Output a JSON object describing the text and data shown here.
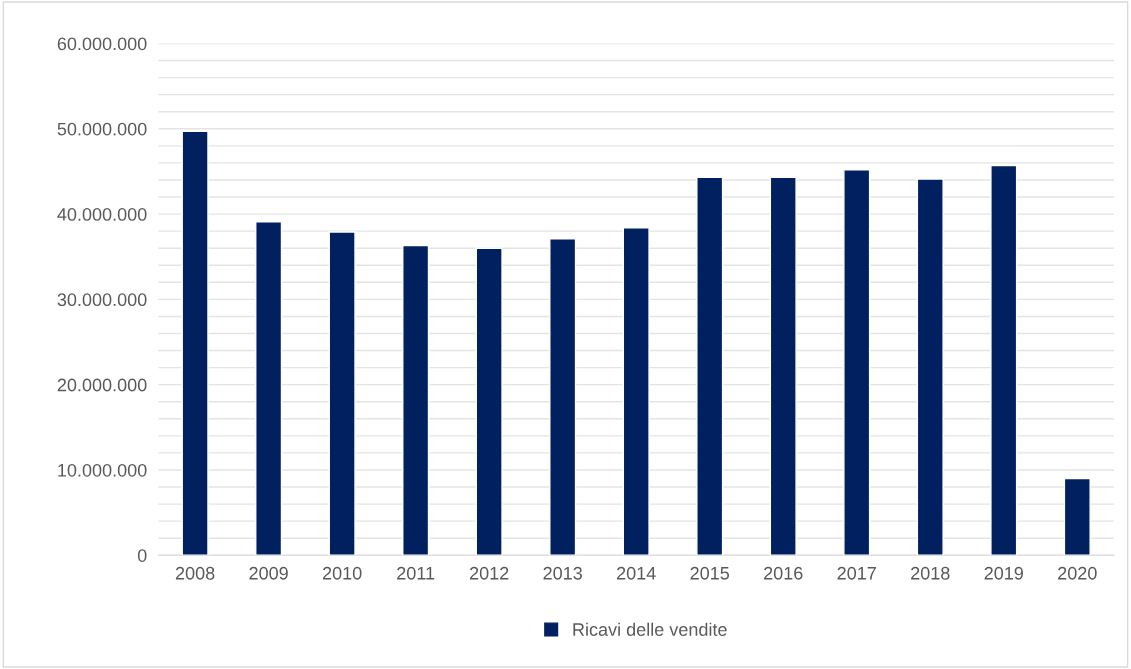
{
  "chart_data": {
    "type": "bar",
    "categories": [
      "2008",
      "2009",
      "2010",
      "2011",
      "2012",
      "2013",
      "2014",
      "2015",
      "2016",
      "2017",
      "2018",
      "2019",
      "2020"
    ],
    "series": [
      {
        "name": "Ricavi delle vendite",
        "color": "#002060",
        "values": [
          49700000,
          39100000,
          37900000,
          36300000,
          36000000,
          37100000,
          38400000,
          44300000,
          44300000,
          45200000,
          44100000,
          45700000,
          9000000
        ]
      }
    ],
    "ylim": [
      0,
      60000000
    ],
    "yticks": [
      {
        "value": 0,
        "label": "0"
      },
      {
        "value": 2000000,
        "label": null
      },
      {
        "value": 4000000,
        "label": null
      },
      {
        "value": 6000000,
        "label": null
      },
      {
        "value": 8000000,
        "label": null
      },
      {
        "value": 10000000,
        "label": "10.000.000"
      },
      {
        "value": 12000000,
        "label": null
      },
      {
        "value": 14000000,
        "label": null
      },
      {
        "value": 16000000,
        "label": null
      },
      {
        "value": 18000000,
        "label": null
      },
      {
        "value": 20000000,
        "label": "20.000.000"
      },
      {
        "value": 22000000,
        "label": null
      },
      {
        "value": 24000000,
        "label": null
      },
      {
        "value": 26000000,
        "label": null
      },
      {
        "value": 28000000,
        "label": null
      },
      {
        "value": 30000000,
        "label": "30.000.000"
      },
      {
        "value": 32000000,
        "label": null
      },
      {
        "value": 34000000,
        "label": null
      },
      {
        "value": 36000000,
        "label": null
      },
      {
        "value": 38000000,
        "label": null
      },
      {
        "value": 40000000,
        "label": "40.000.000"
      },
      {
        "value": 42000000,
        "label": null
      },
      {
        "value": 44000000,
        "label": null
      },
      {
        "value": 46000000,
        "label": null
      },
      {
        "value": 48000000,
        "label": null
      },
      {
        "value": 50000000,
        "label": "50.000.000"
      },
      {
        "value": 52000000,
        "label": null
      },
      {
        "value": 54000000,
        "label": null
      },
      {
        "value": 56000000,
        "label": null
      },
      {
        "value": 58000000,
        "label": null
      },
      {
        "value": 60000000,
        "label": "60.000.000"
      }
    ],
    "grid": "y",
    "legend": "bottom"
  }
}
